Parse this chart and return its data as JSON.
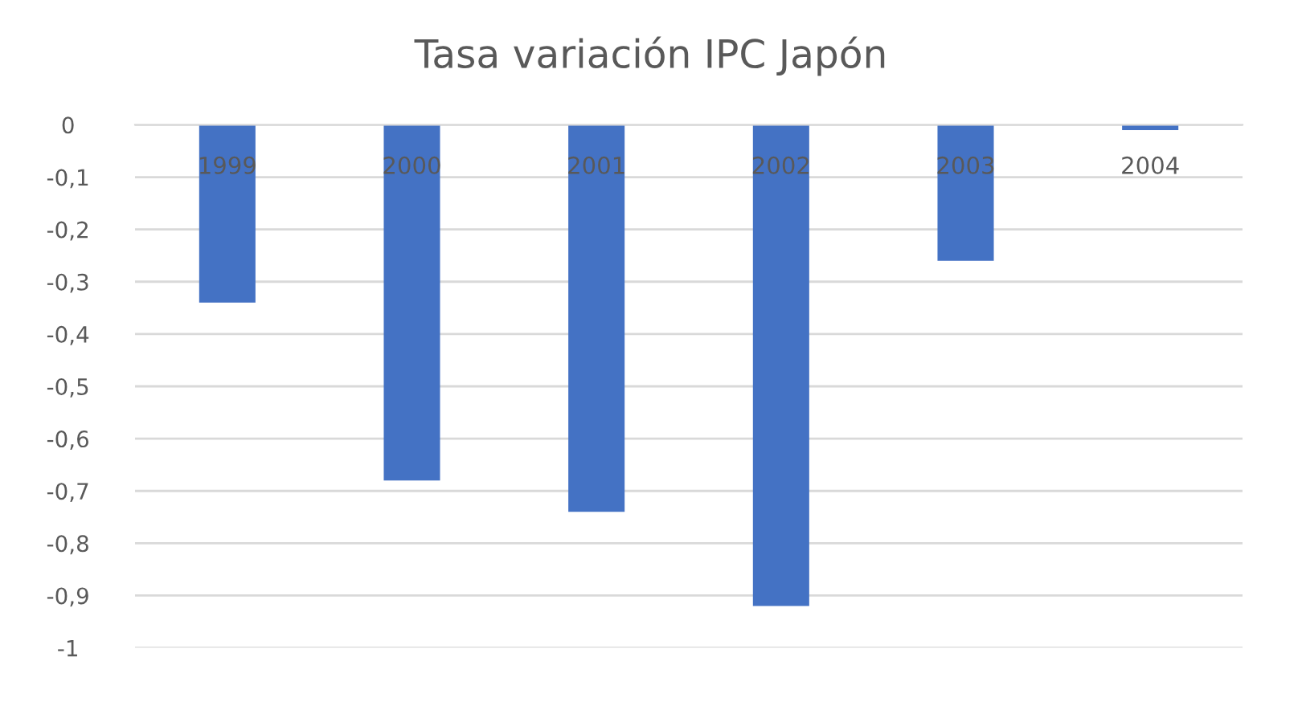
{
  "chart_data": {
    "type": "bar",
    "title": "Tasa variación IPC Japón",
    "categories": [
      "1999",
      "2000",
      "2001",
      "2002",
      "2003",
      "2004"
    ],
    "values": [
      -0.34,
      -0.68,
      -0.74,
      -0.92,
      -0.26,
      -0.01
    ],
    "color": "#4472c4",
    "ylim": [
      -1,
      0
    ],
    "yticks": [
      0,
      {
        "value": -0.1,
        "label": "-0,1"
      },
      {
        "value": -0.2,
        "label": "-0,2"
      },
      {
        "value": -0.3,
        "label": "-0,3"
      },
      {
        "value": -0.4,
        "label": "-0,4"
      },
      {
        "value": -0.5,
        "label": "-0,5"
      },
      {
        "value": -0.6,
        "label": "-0,6"
      },
      {
        "value": -0.7,
        "label": "-0,7"
      },
      {
        "value": -0.8,
        "label": "-0,8"
      },
      {
        "value": -0.9,
        "label": "-0,9"
      },
      -1
    ],
    "grid": "y",
    "legend": false
  }
}
